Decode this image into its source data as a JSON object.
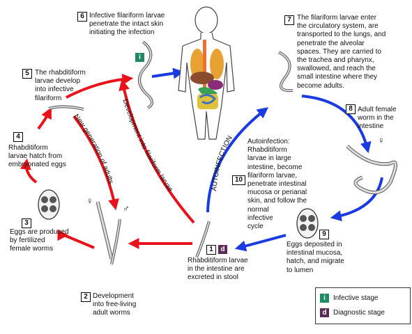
{
  "steps": [
    {
      "num": "1",
      "text": "Rhabditiform larvae\nin the intestine are\nexcreted in stool"
    },
    {
      "num": "2",
      "text": "Development\ninto free-living\nadult worms"
    },
    {
      "num": "3",
      "text": "Eggs are produced\nby fertilized\nfemale worms"
    },
    {
      "num": "4",
      "text": "Rhabditiform\nlarvae hatch from\nembryonated eggs"
    },
    {
      "num": "5",
      "text": "The rhabditiform\nlarvae develop\ninto infective\nfilariform"
    },
    {
      "num": "6",
      "text": "Infective filariform larvae\npenetrate the intact skin\ninitiating the infection"
    },
    {
      "num": "7",
      "text": "The filariform larvae enter\nthe circulatory system, are\ntransported to the lungs, and\npenetrate the alveolar\nspaces. They are carried to\nthe trachea and pharynx,\nswallowed, and reach the\nsmall intestine where they\nbecome adults."
    },
    {
      "num": "8",
      "text": "Adult female\nworm in the\nintestine"
    },
    {
      "num": "9",
      "text": "Eggs deposited in\nintestinal mucosa,\nhatch, and migrate\nto lumen"
    },
    {
      "num": "10",
      "text": "Autoinfection:\nRhabditiform\nlarvae in large\nintestine, become\nfilariform larvae,\npenetrate intestinal\nmucosa or perianal\nskin, and follow the\nnormal\ninfective\ncycle"
    }
  ],
  "arc_labels": {
    "new_generation": "New generation of adults",
    "development": "Development into filariform larvae",
    "autoinfection": "AUTOINFECTION"
  },
  "badges": {
    "infective": "i",
    "diagnostic": "d"
  },
  "legend": {
    "infective_label": "Infective stage",
    "diagnostic_label": "Diagnostic stage"
  },
  "symbols": {
    "female": "♀",
    "male": "♂"
  },
  "colors": {
    "free_living_arrow": "#e8121a",
    "parasitic_arrow": "#1a3be0",
    "infective_badge": "#1f8a63",
    "diagnostic_badge": "#5a2c5a"
  }
}
